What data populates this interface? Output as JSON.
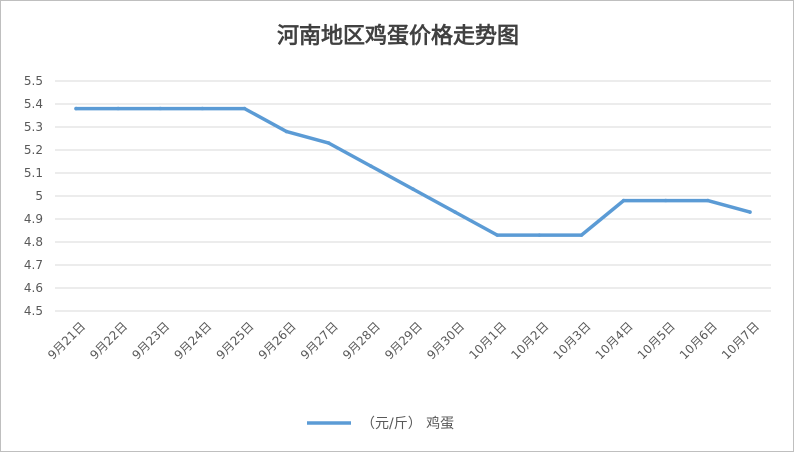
{
  "chart_data": {
    "type": "line",
    "title": "河南地区鸡蛋价格走势图",
    "xlabel": "",
    "ylabel": "",
    "categories": [
      "9月21日",
      "9月22日",
      "9月23日",
      "9月24日",
      "9月25日",
      "9月26日",
      "9月27日",
      "9月28日",
      "9月29日",
      "9月30日",
      "10月1日",
      "10月2日",
      "10月3日",
      "10月4日",
      "10月5日",
      "10月6日",
      "10月7日"
    ],
    "series": [
      {
        "name": "（元/斤） 鸡蛋",
        "color": "#5b9bd5",
        "values": [
          5.38,
          5.38,
          5.38,
          5.38,
          5.38,
          5.28,
          5.23,
          5.13,
          5.03,
          4.93,
          4.83,
          4.83,
          4.83,
          4.98,
          4.98,
          4.98,
          4.93
        ]
      }
    ],
    "ylim": [
      4.5,
      5.5
    ],
    "yticks": [
      "4.5",
      "4.6",
      "4.7",
      "4.8",
      "4.9",
      "5",
      "5.1",
      "5.2",
      "5.3",
      "5.4",
      "5.5"
    ],
    "grid": true,
    "legend_position": "bottom"
  }
}
